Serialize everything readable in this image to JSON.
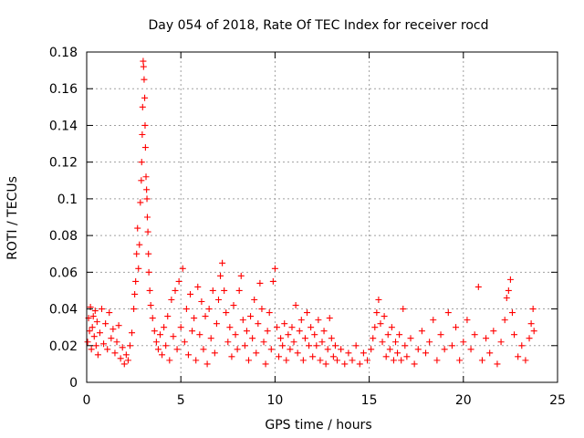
{
  "chart_data": {
    "type": "scatter",
    "title": "Day 054 of 2018, Rate Of TEC Index for receiver rocd",
    "xlabel": "GPS time / hours",
    "ylabel": "ROTI / TECUs",
    "xlim": [
      0,
      25
    ],
    "ylim": [
      0,
      0.18
    ],
    "xticks": [
      0,
      5,
      10,
      15,
      20,
      25
    ],
    "xtick_labels": [
      "0",
      "5",
      "10",
      "15",
      "20",
      "25"
    ],
    "yticks": [
      0,
      0.02,
      0.04,
      0.06,
      0.08,
      0.1,
      0.12,
      0.14,
      0.16,
      0.18
    ],
    "ytick_labels": [
      "0",
      "0.02",
      "0.04",
      "0.06",
      "0.08",
      "0.1",
      "0.12",
      "0.14",
      "0.16",
      "0.18"
    ],
    "grid": true,
    "marker": "+",
    "color": "#ff0000",
    "series": [
      {
        "name": "ROTI",
        "points": [
          [
            0.05,
            0.022
          ],
          [
            0.1,
            0.035
          ],
          [
            0.15,
            0.028
          ],
          [
            0.2,
            0.041
          ],
          [
            0.25,
            0.018
          ],
          [
            0.3,
            0.03
          ],
          [
            0.35,
            0.036
          ],
          [
            0.4,
            0.025
          ],
          [
            0.45,
            0.039
          ],
          [
            0.5,
            0.02
          ],
          [
            0.55,
            0.033
          ],
          [
            0.6,
            0.015
          ],
          [
            0.7,
            0.027
          ],
          [
            0.8,
            0.04
          ],
          [
            0.9,
            0.021
          ],
          [
            1.0,
            0.032
          ],
          [
            1.1,
            0.018
          ],
          [
            1.2,
            0.038
          ],
          [
            1.3,
            0.024
          ],
          [
            1.4,
            0.029
          ],
          [
            1.5,
            0.016
          ],
          [
            1.6,
            0.022
          ],
          [
            1.7,
            0.031
          ],
          [
            1.8,
            0.013
          ],
          [
            1.9,
            0.019
          ],
          [
            2.0,
            0.01
          ],
          [
            2.1,
            0.015
          ],
          [
            2.2,
            0.012
          ],
          [
            2.3,
            0.02
          ],
          [
            2.4,
            0.027
          ],
          [
            2.5,
            0.04
          ],
          [
            2.55,
            0.048
          ],
          [
            2.6,
            0.055
          ],
          [
            2.65,
            0.07
          ],
          [
            2.7,
            0.084
          ],
          [
            2.75,
            0.062
          ],
          [
            2.8,
            0.075
          ],
          [
            2.85,
            0.098
          ],
          [
            2.9,
            0.11
          ],
          [
            2.92,
            0.12
          ],
          [
            2.95,
            0.135
          ],
          [
            2.97,
            0.15
          ],
          [
            3.0,
            0.175
          ],
          [
            3.02,
            0.172
          ],
          [
            3.05,
            0.165
          ],
          [
            3.08,
            0.155
          ],
          [
            3.1,
            0.14
          ],
          [
            3.12,
            0.128
          ],
          [
            3.15,
            0.112
          ],
          [
            3.18,
            0.105
          ],
          [
            3.2,
            0.1
          ],
          [
            3.22,
            0.09
          ],
          [
            3.25,
            0.082
          ],
          [
            3.28,
            0.07
          ],
          [
            3.3,
            0.06
          ],
          [
            3.35,
            0.05
          ],
          [
            3.4,
            0.042
          ],
          [
            3.5,
            0.035
          ],
          [
            3.6,
            0.028
          ],
          [
            3.7,
            0.022
          ],
          [
            3.8,
            0.018
          ],
          [
            3.9,
            0.026
          ],
          [
            4.0,
            0.015
          ],
          [
            4.1,
            0.03
          ],
          [
            4.2,
            0.02
          ],
          [
            4.3,
            0.036
          ],
          [
            4.4,
            0.012
          ],
          [
            4.5,
            0.045
          ],
          [
            4.6,
            0.025
          ],
          [
            4.7,
            0.05
          ],
          [
            4.8,
            0.018
          ],
          [
            4.9,
            0.055
          ],
          [
            5.0,
            0.03
          ],
          [
            5.1,
            0.062
          ],
          [
            5.2,
            0.022
          ],
          [
            5.3,
            0.04
          ],
          [
            5.4,
            0.015
          ],
          [
            5.5,
            0.048
          ],
          [
            5.6,
            0.028
          ],
          [
            5.7,
            0.035
          ],
          [
            5.8,
            0.012
          ],
          [
            5.9,
            0.052
          ],
          [
            6.0,
            0.026
          ],
          [
            6.1,
            0.044
          ],
          [
            6.2,
            0.018
          ],
          [
            6.3,
            0.036
          ],
          [
            6.4,
            0.01
          ],
          [
            6.5,
            0.04
          ],
          [
            6.6,
            0.024
          ],
          [
            6.7,
            0.05
          ],
          [
            6.8,
            0.016
          ],
          [
            6.9,
            0.032
          ],
          [
            7.0,
            0.045
          ],
          [
            7.1,
            0.058
          ],
          [
            7.2,
            0.065
          ],
          [
            7.3,
            0.05
          ],
          [
            7.4,
            0.038
          ],
          [
            7.5,
            0.022
          ],
          [
            7.6,
            0.03
          ],
          [
            7.7,
            0.014
          ],
          [
            7.8,
            0.042
          ],
          [
            7.9,
            0.026
          ],
          [
            8.0,
            0.018
          ],
          [
            8.1,
            0.05
          ],
          [
            8.2,
            0.058
          ],
          [
            8.3,
            0.034
          ],
          [
            8.4,
            0.02
          ],
          [
            8.5,
            0.028
          ],
          [
            8.6,
            0.012
          ],
          [
            8.7,
            0.036
          ],
          [
            8.8,
            0.024
          ],
          [
            8.9,
            0.045
          ],
          [
            9.0,
            0.016
          ],
          [
            9.1,
            0.032
          ],
          [
            9.2,
            0.054
          ],
          [
            9.3,
            0.04
          ],
          [
            9.4,
            0.022
          ],
          [
            9.5,
            0.01
          ],
          [
            9.6,
            0.028
          ],
          [
            9.7,
            0.038
          ],
          [
            9.8,
            0.018
          ],
          [
            9.9,
            0.055
          ],
          [
            10.0,
            0.062
          ],
          [
            10.1,
            0.03
          ],
          [
            10.2,
            0.014
          ],
          [
            10.3,
            0.024
          ],
          [
            10.4,
            0.02
          ],
          [
            10.5,
            0.032
          ],
          [
            10.6,
            0.012
          ],
          [
            10.7,
            0.026
          ],
          [
            10.8,
            0.018
          ],
          [
            10.9,
            0.03
          ],
          [
            11.0,
            0.022
          ],
          [
            11.1,
            0.042
          ],
          [
            11.2,
            0.016
          ],
          [
            11.3,
            0.028
          ],
          [
            11.4,
            0.034
          ],
          [
            11.5,
            0.012
          ],
          [
            11.6,
            0.024
          ],
          [
            11.7,
            0.038
          ],
          [
            11.8,
            0.02
          ],
          [
            11.9,
            0.03
          ],
          [
            12.0,
            0.014
          ],
          [
            12.1,
            0.026
          ],
          [
            12.2,
            0.02
          ],
          [
            12.3,
            0.034
          ],
          [
            12.4,
            0.012
          ],
          [
            12.5,
            0.022
          ],
          [
            12.6,
            0.028
          ],
          [
            12.7,
            0.01
          ],
          [
            12.8,
            0.018
          ],
          [
            12.9,
            0.035
          ],
          [
            13.0,
            0.024
          ],
          [
            13.1,
            0.014
          ],
          [
            13.2,
            0.02
          ],
          [
            13.3,
            0.012
          ],
          [
            13.5,
            0.018
          ],
          [
            13.7,
            0.01
          ],
          [
            13.9,
            0.016
          ],
          [
            14.1,
            0.012
          ],
          [
            14.3,
            0.02
          ],
          [
            14.5,
            0.01
          ],
          [
            14.7,
            0.016
          ],
          [
            14.9,
            0.012
          ],
          [
            15.1,
            0.018
          ],
          [
            15.2,
            0.024
          ],
          [
            15.3,
            0.03
          ],
          [
            15.4,
            0.038
          ],
          [
            15.5,
            0.045
          ],
          [
            15.6,
            0.032
          ],
          [
            15.7,
            0.022
          ],
          [
            15.8,
            0.036
          ],
          [
            15.9,
            0.014
          ],
          [
            16.0,
            0.026
          ],
          [
            16.1,
            0.018
          ],
          [
            16.2,
            0.03
          ],
          [
            16.3,
            0.012
          ],
          [
            16.4,
            0.022
          ],
          [
            16.5,
            0.016
          ],
          [
            16.6,
            0.026
          ],
          [
            16.7,
            0.012
          ],
          [
            16.8,
            0.04
          ],
          [
            16.9,
            0.02
          ],
          [
            17.0,
            0.014
          ],
          [
            17.2,
            0.024
          ],
          [
            17.4,
            0.01
          ],
          [
            17.6,
            0.018
          ],
          [
            17.8,
            0.028
          ],
          [
            18.0,
            0.016
          ],
          [
            18.2,
            0.022
          ],
          [
            18.4,
            0.034
          ],
          [
            18.6,
            0.012
          ],
          [
            18.8,
            0.026
          ],
          [
            19.0,
            0.018
          ],
          [
            19.2,
            0.038
          ],
          [
            19.4,
            0.02
          ],
          [
            19.6,
            0.03
          ],
          [
            19.8,
            0.012
          ],
          [
            20.0,
            0.022
          ],
          [
            20.2,
            0.034
          ],
          [
            20.4,
            0.018
          ],
          [
            20.6,
            0.026
          ],
          [
            20.8,
            0.052
          ],
          [
            21.0,
            0.012
          ],
          [
            21.2,
            0.024
          ],
          [
            21.4,
            0.016
          ],
          [
            21.6,
            0.028
          ],
          [
            21.8,
            0.01
          ],
          [
            22.0,
            0.022
          ],
          [
            22.2,
            0.034
          ],
          [
            22.3,
            0.046
          ],
          [
            22.4,
            0.05
          ],
          [
            22.5,
            0.056
          ],
          [
            22.6,
            0.038
          ],
          [
            22.7,
            0.026
          ],
          [
            22.9,
            0.014
          ],
          [
            23.1,
            0.02
          ],
          [
            23.3,
            0.012
          ],
          [
            23.5,
            0.024
          ],
          [
            23.6,
            0.032
          ],
          [
            23.7,
            0.04
          ],
          [
            23.75,
            0.028
          ]
        ]
      }
    ]
  }
}
